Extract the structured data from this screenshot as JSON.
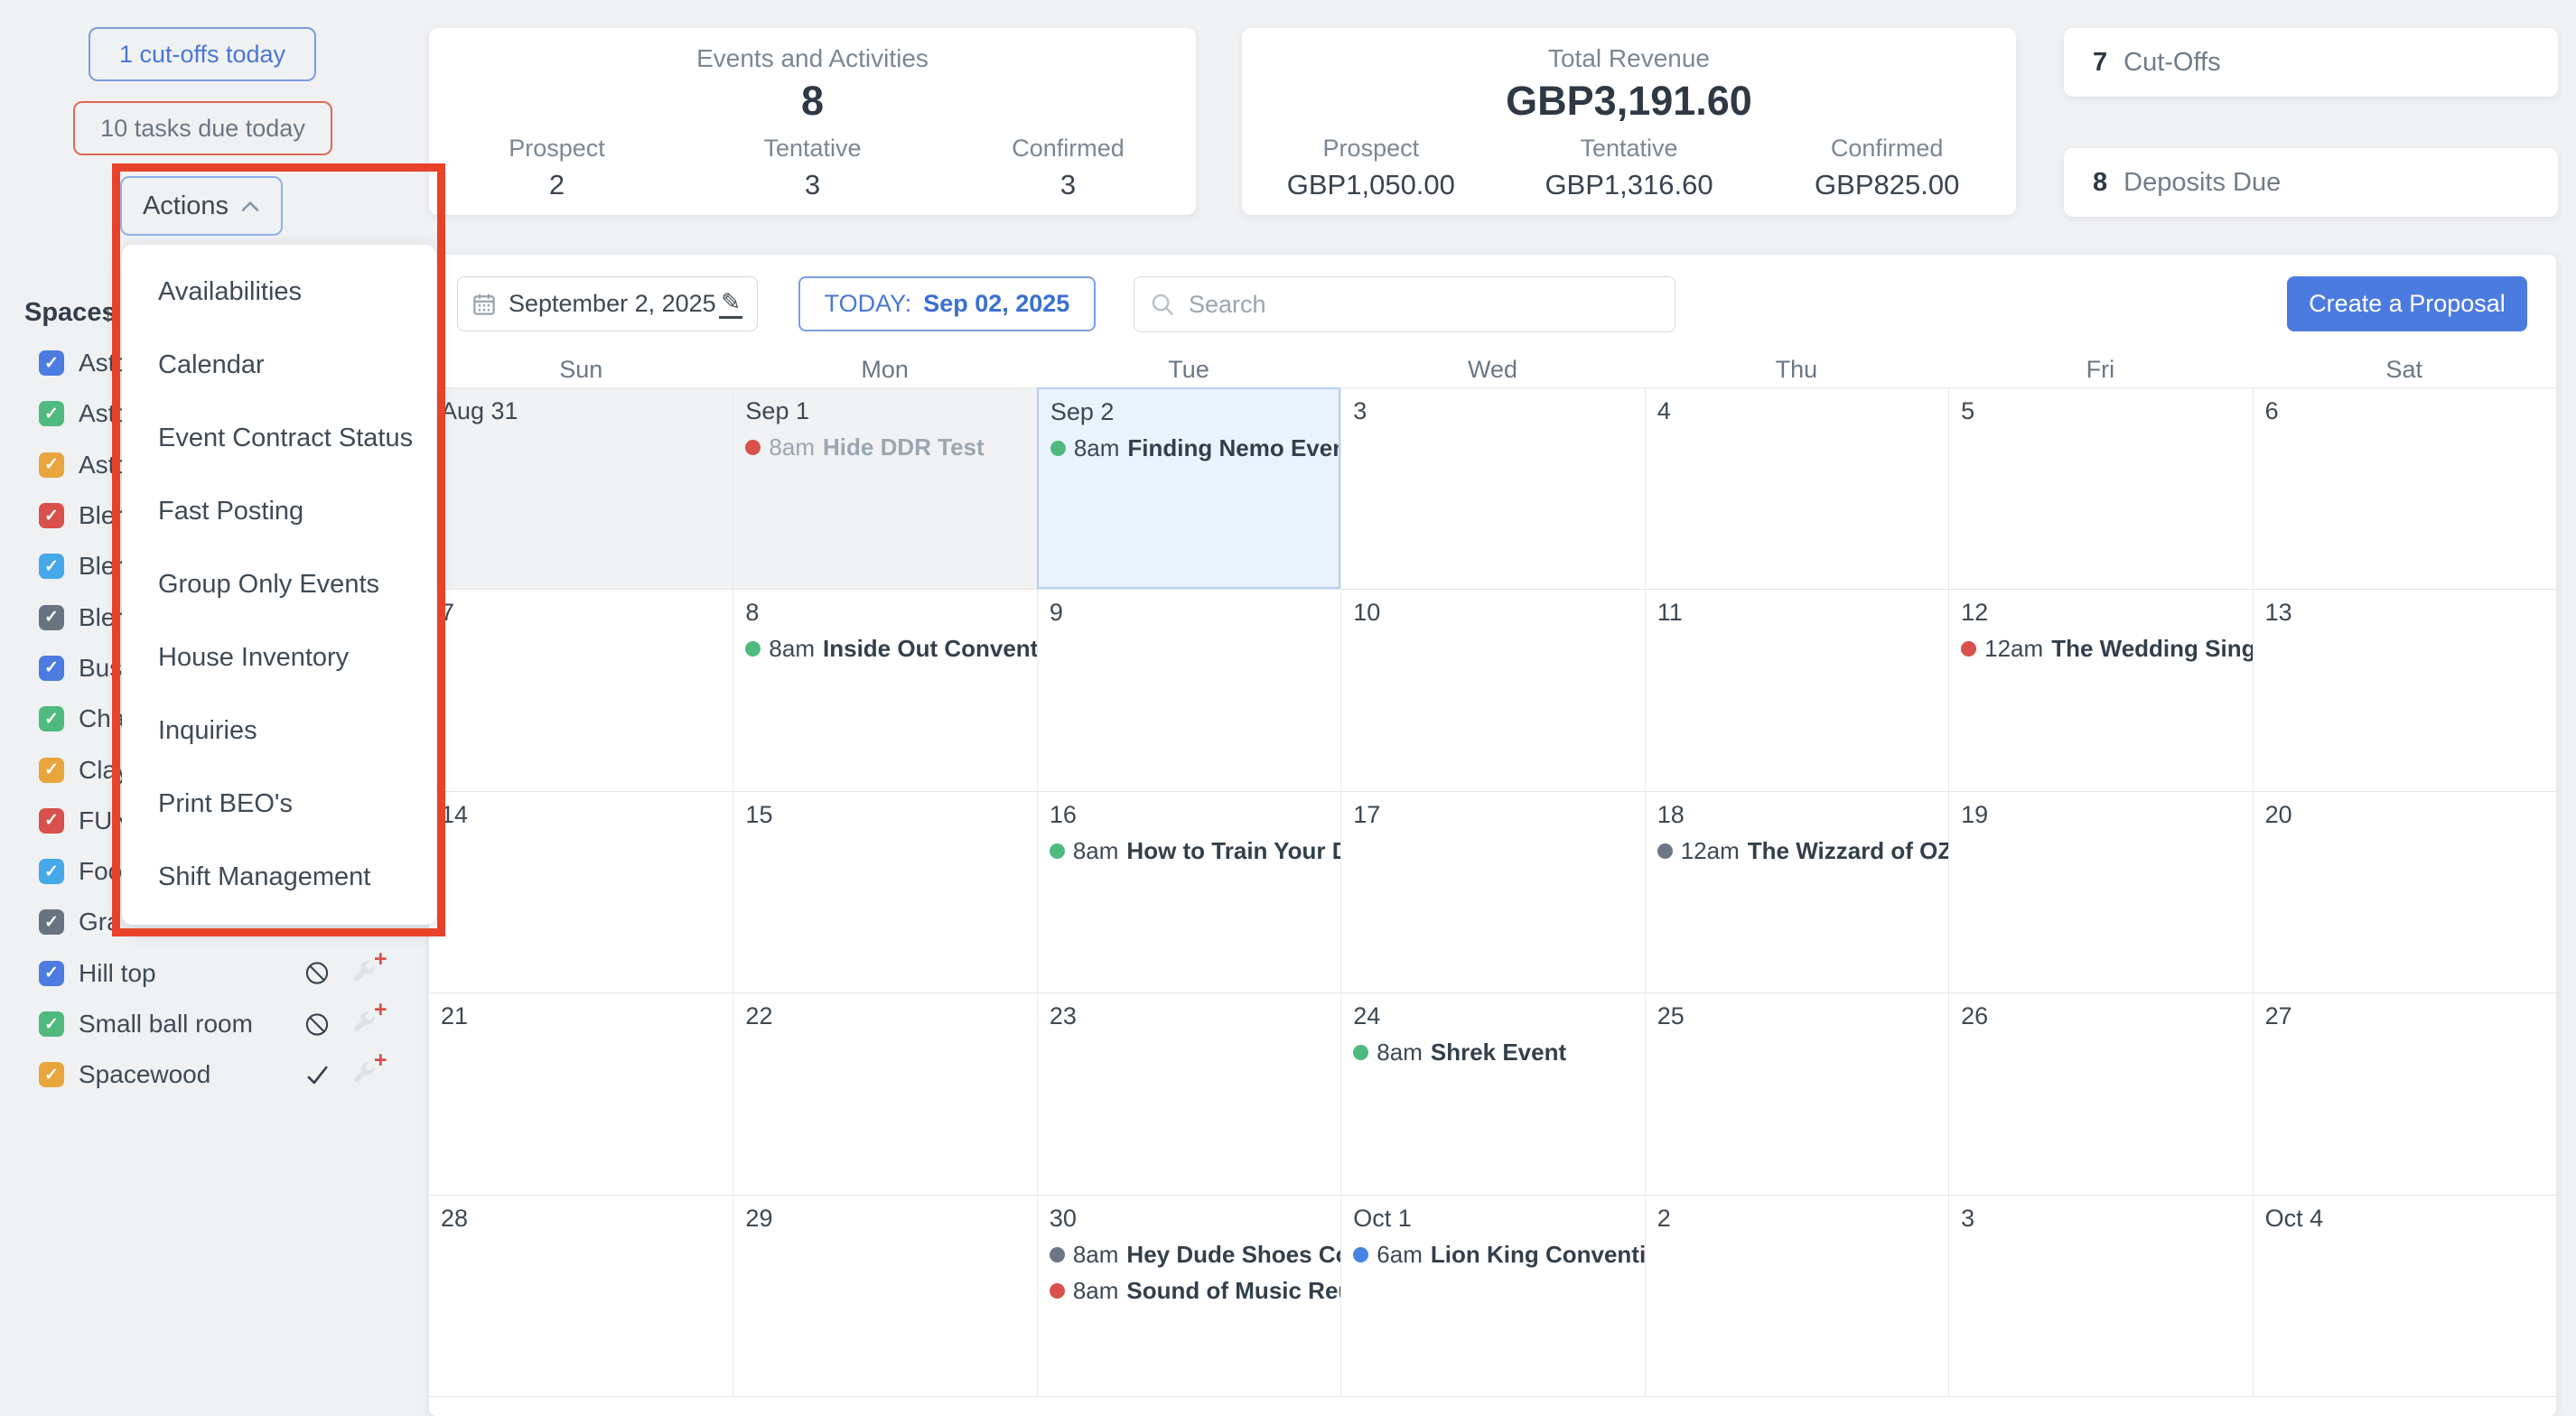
{
  "colors": {
    "accent_blue": "#4c7be0",
    "annotation_red": "#e8432a",
    "event_green": "#4fba7d",
    "event_red": "#d9504c",
    "event_gray": "#6b7785",
    "event_blue": "#4584e0",
    "today_cell_bg": "#e9f2fd"
  },
  "top_left": {
    "cutoffs_button": "1 cut-offs today",
    "tasks_button": "10 tasks due today",
    "actions_button": "Actions"
  },
  "actions_menu": {
    "items": [
      "Availabilities",
      "Calendar",
      "Event Contract Status",
      "Fast Posting",
      "Group Only Events",
      "House Inventory",
      "Inquiries",
      "Print BEO's",
      "Shift Management"
    ]
  },
  "spaces": {
    "title": "Spaces",
    "items": [
      {
        "label": "Asto",
        "color": "#4c7ce0"
      },
      {
        "label": "Asto",
        "color": "#4fba7d"
      },
      {
        "label": "Asto",
        "color": "#e8a53c"
      },
      {
        "label": "Bler",
        "color": "#d9504c"
      },
      {
        "label": "Bler",
        "color": "#45a8e8"
      },
      {
        "label": "Bler",
        "color": "#68737f"
      },
      {
        "label": "Bus",
        "color": "#4c7ce0"
      },
      {
        "label": "Cha",
        "color": "#4fba7d"
      },
      {
        "label": "Clay",
        "color": "#e8a53c"
      },
      {
        "label": "FUN",
        "color": "#d9504c"
      },
      {
        "label": "Foo",
        "color": "#45a8e8"
      },
      {
        "label": "Gra",
        "color": "#68737f"
      },
      {
        "label": "Hill top",
        "color": "#4c7ce0",
        "status_icon": "no-symbol",
        "action_icon": "wrench-plus"
      },
      {
        "label": "Small ball room",
        "color": "#4fba7d",
        "status_icon": "no-symbol",
        "action_icon": "wrench-plus"
      },
      {
        "label": "Spacewood",
        "color": "#e8a53c",
        "status_icon": "check",
        "action_icon": "wrench-plus"
      }
    ]
  },
  "stats": {
    "events_card": {
      "title": "Events and Activities",
      "total": "8",
      "breakdown": [
        {
          "label": "Prospect",
          "value": "2"
        },
        {
          "label": "Tentative",
          "value": "3"
        },
        {
          "label": "Confirmed",
          "value": "3"
        }
      ]
    },
    "revenue_card": {
      "title": "Total Revenue",
      "total": "GBP3,191.60",
      "breakdown": [
        {
          "label": "Prospect",
          "value": "GBP1,050.00"
        },
        {
          "label": "Tentative",
          "value": "GBP1,316.60"
        },
        {
          "label": "Confirmed",
          "value": "GBP825.00"
        }
      ]
    },
    "cutoffs_card": {
      "count": "7",
      "label": "Cut-Offs"
    },
    "deposits_card": {
      "count": "8",
      "label": "Deposits Due"
    }
  },
  "toolbar": {
    "date_picker_value": "September 2, 2025",
    "today_label": "TODAY:",
    "today_date": "Sep 02, 2025",
    "search_placeholder": "Search",
    "create_proposal": "Create a Proposal"
  },
  "calendar": {
    "day_headers": [
      "Sun",
      "Mon",
      "Tue",
      "Wed",
      "Thu",
      "Fri",
      "Sat"
    ],
    "weeks": [
      [
        {
          "date": "Aug 31",
          "state": "past"
        },
        {
          "date": "Sep 1",
          "state": "past",
          "events": [
            {
              "dot": "#d9504c",
              "time": "8am",
              "title": "Hide DDR Test",
              "muted": true
            }
          ]
        },
        {
          "date": "Sep 2",
          "state": "today",
          "events": [
            {
              "dot": "#4fba7d",
              "time": "8am",
              "title": "Finding Nemo Event"
            }
          ]
        },
        {
          "date": "3"
        },
        {
          "date": "4"
        },
        {
          "date": "5"
        },
        {
          "date": "6"
        }
      ],
      [
        {
          "date": "7"
        },
        {
          "date": "8",
          "events": [
            {
              "dot": "#4fba7d",
              "time": "8am",
              "title": "Inside Out Convention"
            }
          ]
        },
        {
          "date": "9"
        },
        {
          "date": "10"
        },
        {
          "date": "11"
        },
        {
          "date": "12",
          "events": [
            {
              "dot": "#d9504c",
              "time": "12am",
              "title": "The Wedding Singer"
            }
          ]
        },
        {
          "date": "13"
        }
      ],
      [
        {
          "date": "14"
        },
        {
          "date": "15"
        },
        {
          "date": "16",
          "events": [
            {
              "dot": "#4fba7d",
              "time": "8am",
              "title": "How to Train Your Drag"
            }
          ]
        },
        {
          "date": "17"
        },
        {
          "date": "18",
          "events": [
            {
              "dot": "#6b7785",
              "time": "12am",
              "title": "The Wizzard of OZ Co"
            }
          ]
        },
        {
          "date": "19"
        },
        {
          "date": "20"
        }
      ],
      [
        {
          "date": "21"
        },
        {
          "date": "22"
        },
        {
          "date": "23"
        },
        {
          "date": "24",
          "events": [
            {
              "dot": "#4fba7d",
              "time": "8am",
              "title": "Shrek Event"
            }
          ]
        },
        {
          "date": "25"
        },
        {
          "date": "26"
        },
        {
          "date": "27"
        }
      ],
      [
        {
          "date": "28"
        },
        {
          "date": "29"
        },
        {
          "date": "30",
          "events": [
            {
              "dot": "#6b7785",
              "time": "8am",
              "title": "Hey Dude Shoes Conve"
            },
            {
              "dot": "#d9504c",
              "time": "8am",
              "title": "Sound of Music Reunio"
            }
          ]
        },
        {
          "date": "Oct 1",
          "events": [
            {
              "dot": "#4584e0",
              "time": "6am",
              "title": "Lion King Convention"
            }
          ]
        },
        {
          "date": "2"
        },
        {
          "date": "3"
        },
        {
          "date": "Oct 4"
        }
      ]
    ]
  }
}
